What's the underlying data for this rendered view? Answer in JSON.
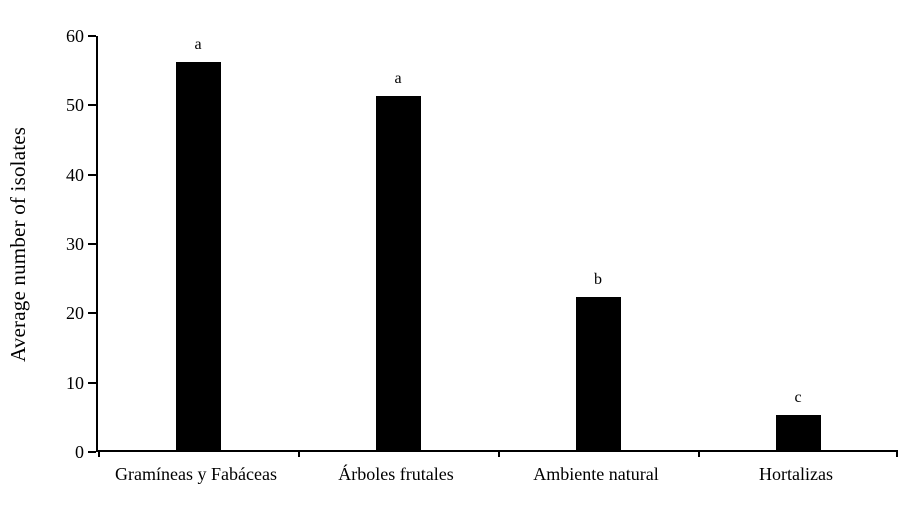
{
  "chart_data": {
    "type": "bar",
    "categories": [
      "Gramíneas y Fabáceas",
      "Árboles frutales",
      "Ambiente natural",
      "Hortalizas"
    ],
    "values": [
      56,
      51,
      22,
      5
    ],
    "bar_labels": [
      "a",
      "a",
      "b",
      "c"
    ],
    "xlabel": "",
    "ylabel": "Average number of isolates",
    "ylim": [
      0,
      60
    ],
    "yticks": [
      0,
      10,
      20,
      30,
      40,
      50,
      60
    ],
    "bar_color": "#000000",
    "axis_color": "#000000",
    "background_color": "#ffffff",
    "grid": false,
    "legend": "none"
  }
}
